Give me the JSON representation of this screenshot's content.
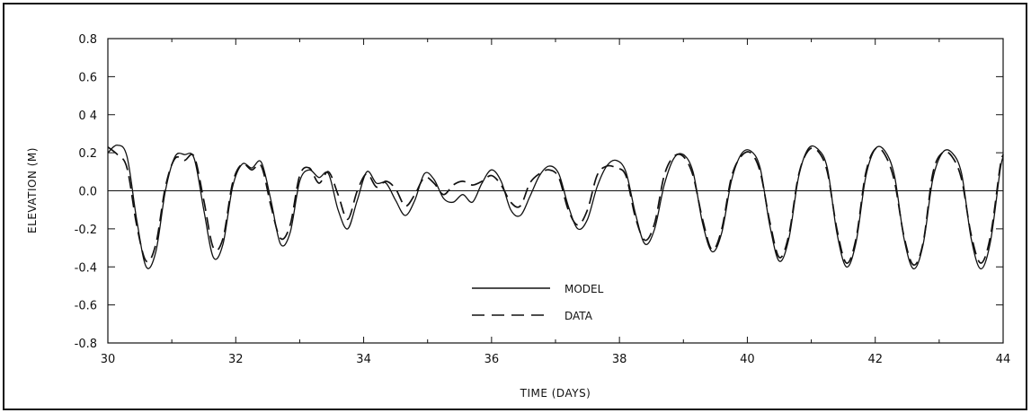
{
  "chart_data": {
    "type": "line",
    "title": "",
    "xlabel": "TIME  (DAYS)",
    "ylabel": "ELEVATION (M)",
    "xlim": [
      30,
      44
    ],
    "ylim": [
      -0.8,
      0.8
    ],
    "grid": false,
    "zero_line": true,
    "legend_placement": "lower-center",
    "x_ticks": [
      30,
      32,
      34,
      36,
      38,
      40,
      42,
      44
    ],
    "x_tick_labels": [
      "30",
      "32",
      "34",
      "36",
      "38",
      "40",
      "42",
      "44"
    ],
    "y_ticks": [
      -0.8,
      -0.6,
      -0.4,
      -0.2,
      0.0,
      0.2,
      0.4,
      0.6,
      0.8
    ],
    "y_tick_labels": [
      "-0.8",
      "-0.6",
      "-0.4",
      "-0.2",
      "0.0",
      "0.2",
      "0 4",
      "0.6",
      "0.8"
    ],
    "series": [
      {
        "name": "MODEL",
        "style": "solid",
        "color": "#111111",
        "points": [
          [
            30.0,
            0.2
          ],
          [
            30.15,
            0.24
          ],
          [
            30.3,
            0.18
          ],
          [
            30.45,
            -0.15
          ],
          [
            30.6,
            -0.4
          ],
          [
            30.75,
            -0.32
          ],
          [
            30.9,
            0.0
          ],
          [
            31.05,
            0.18
          ],
          [
            31.2,
            0.19
          ],
          [
            31.35,
            0.17
          ],
          [
            31.5,
            -0.1
          ],
          [
            31.65,
            -0.35
          ],
          [
            31.8,
            -0.28
          ],
          [
            31.95,
            0.02
          ],
          [
            32.1,
            0.14
          ],
          [
            32.25,
            0.12
          ],
          [
            32.4,
            0.15
          ],
          [
            32.55,
            -0.05
          ],
          [
            32.7,
            -0.28
          ],
          [
            32.85,
            -0.22
          ],
          [
            33.0,
            0.05
          ],
          [
            33.15,
            0.11
          ],
          [
            33.3,
            0.07
          ],
          [
            33.45,
            0.09
          ],
          [
            33.6,
            -0.1
          ],
          [
            33.75,
            -0.2
          ],
          [
            33.9,
            -0.05
          ],
          [
            34.05,
            0.1
          ],
          [
            34.2,
            0.04
          ],
          [
            34.35,
            0.04
          ],
          [
            34.5,
            -0.05
          ],
          [
            34.65,
            -0.13
          ],
          [
            34.8,
            -0.05
          ],
          [
            34.95,
            0.09
          ],
          [
            35.1,
            0.06
          ],
          [
            35.25,
            -0.04
          ],
          [
            35.4,
            -0.06
          ],
          [
            35.55,
            -0.02
          ],
          [
            35.7,
            -0.06
          ],
          [
            35.85,
            0.04
          ],
          [
            36.0,
            0.11
          ],
          [
            36.15,
            0.05
          ],
          [
            36.3,
            -0.1
          ],
          [
            36.45,
            -0.13
          ],
          [
            36.6,
            -0.03
          ],
          [
            36.75,
            0.08
          ],
          [
            36.9,
            0.13
          ],
          [
            37.05,
            0.09
          ],
          [
            37.2,
            -0.08
          ],
          [
            37.35,
            -0.2
          ],
          [
            37.5,
            -0.15
          ],
          [
            37.65,
            0.02
          ],
          [
            37.8,
            0.13
          ],
          [
            37.95,
            0.16
          ],
          [
            38.1,
            0.1
          ],
          [
            38.25,
            -0.12
          ],
          [
            38.4,
            -0.28
          ],
          [
            38.55,
            -0.2
          ],
          [
            38.7,
            0.03
          ],
          [
            38.85,
            0.17
          ],
          [
            39.0,
            0.19
          ],
          [
            39.15,
            0.1
          ],
          [
            39.3,
            -0.17
          ],
          [
            39.45,
            -0.32
          ],
          [
            39.6,
            -0.22
          ],
          [
            39.75,
            0.05
          ],
          [
            39.9,
            0.19
          ],
          [
            40.05,
            0.21
          ],
          [
            40.2,
            0.12
          ],
          [
            40.35,
            -0.18
          ],
          [
            40.5,
            -0.37
          ],
          [
            40.65,
            -0.25
          ],
          [
            40.8,
            0.07
          ],
          [
            40.95,
            0.22
          ],
          [
            41.1,
            0.22
          ],
          [
            41.25,
            0.12
          ],
          [
            41.4,
            -0.22
          ],
          [
            41.55,
            -0.4
          ],
          [
            41.7,
            -0.27
          ],
          [
            41.85,
            0.07
          ],
          [
            42.0,
            0.22
          ],
          [
            42.15,
            0.21
          ],
          [
            42.3,
            0.08
          ],
          [
            42.45,
            -0.25
          ],
          [
            42.6,
            -0.41
          ],
          [
            42.75,
            -0.28
          ],
          [
            42.9,
            0.06
          ],
          [
            43.05,
            0.2
          ],
          [
            43.2,
            0.2
          ],
          [
            43.35,
            0.09
          ],
          [
            43.5,
            -0.25
          ],
          [
            43.65,
            -0.41
          ],
          [
            43.8,
            -0.27
          ],
          [
            43.95,
            0.1
          ],
          [
            44.0,
            0.18
          ]
        ]
      },
      {
        "name": "DATA",
        "style": "dashed",
        "color": "#111111",
        "points": [
          [
            30.0,
            0.23
          ],
          [
            30.15,
            0.19
          ],
          [
            30.3,
            0.12
          ],
          [
            30.45,
            -0.18
          ],
          [
            30.6,
            -0.37
          ],
          [
            30.75,
            -0.28
          ],
          [
            30.9,
            0.02
          ],
          [
            31.05,
            0.17
          ],
          [
            31.2,
            0.16
          ],
          [
            31.35,
            0.18
          ],
          [
            31.5,
            -0.05
          ],
          [
            31.65,
            -0.3
          ],
          [
            31.8,
            -0.25
          ],
          [
            31.95,
            0.04
          ],
          [
            32.1,
            0.14
          ],
          [
            32.25,
            0.11
          ],
          [
            32.4,
            0.13
          ],
          [
            32.55,
            -0.08
          ],
          [
            32.7,
            -0.25
          ],
          [
            32.85,
            -0.18
          ],
          [
            33.0,
            0.08
          ],
          [
            33.15,
            0.12
          ],
          [
            33.3,
            0.04
          ],
          [
            33.45,
            0.1
          ],
          [
            33.6,
            -0.02
          ],
          [
            33.75,
            -0.15
          ],
          [
            33.9,
            0.0
          ],
          [
            34.05,
            0.09
          ],
          [
            34.2,
            0.02
          ],
          [
            34.35,
            0.05
          ],
          [
            34.5,
            0.01
          ],
          [
            34.65,
            -0.08
          ],
          [
            34.8,
            -0.02
          ],
          [
            34.95,
            0.07
          ],
          [
            35.1,
            0.04
          ],
          [
            35.25,
            -0.02
          ],
          [
            35.4,
            0.03
          ],
          [
            35.55,
            0.05
          ],
          [
            35.7,
            0.03
          ],
          [
            35.85,
            0.05
          ],
          [
            36.0,
            0.08
          ],
          [
            36.15,
            0.03
          ],
          [
            36.3,
            -0.06
          ],
          [
            36.45,
            -0.08
          ],
          [
            36.6,
            0.04
          ],
          [
            36.75,
            0.09
          ],
          [
            36.9,
            0.11
          ],
          [
            37.05,
            0.07
          ],
          [
            37.2,
            -0.1
          ],
          [
            37.35,
            -0.18
          ],
          [
            37.5,
            -0.1
          ],
          [
            37.65,
            0.08
          ],
          [
            37.8,
            0.13
          ],
          [
            37.95,
            0.12
          ],
          [
            38.1,
            0.08
          ],
          [
            38.25,
            -0.14
          ],
          [
            38.4,
            -0.26
          ],
          [
            38.55,
            -0.17
          ],
          [
            38.7,
            0.08
          ],
          [
            38.85,
            0.18
          ],
          [
            39.0,
            0.18
          ],
          [
            39.15,
            0.08
          ],
          [
            39.3,
            -0.15
          ],
          [
            39.45,
            -0.31
          ],
          [
            39.6,
            -0.2
          ],
          [
            39.75,
            0.07
          ],
          [
            39.9,
            0.18
          ],
          [
            40.05,
            0.2
          ],
          [
            40.2,
            0.1
          ],
          [
            40.35,
            -0.16
          ],
          [
            40.5,
            -0.35
          ],
          [
            40.65,
            -0.23
          ],
          [
            40.8,
            0.08
          ],
          [
            40.95,
            0.21
          ],
          [
            41.1,
            0.21
          ],
          [
            41.25,
            0.1
          ],
          [
            41.4,
            -0.2
          ],
          [
            41.55,
            -0.38
          ],
          [
            41.7,
            -0.25
          ],
          [
            41.85,
            0.09
          ],
          [
            42.0,
            0.22
          ],
          [
            42.15,
            0.19
          ],
          [
            42.3,
            0.05
          ],
          [
            42.45,
            -0.24
          ],
          [
            42.6,
            -0.39
          ],
          [
            42.75,
            -0.27
          ],
          [
            42.9,
            0.09
          ],
          [
            43.05,
            0.2
          ],
          [
            43.2,
            0.18
          ],
          [
            43.35,
            0.06
          ],
          [
            43.5,
            -0.23
          ],
          [
            43.65,
            -0.38
          ],
          [
            43.8,
            -0.24
          ],
          [
            43.95,
            0.12
          ],
          [
            44.0,
            0.19
          ]
        ]
      }
    ]
  }
}
